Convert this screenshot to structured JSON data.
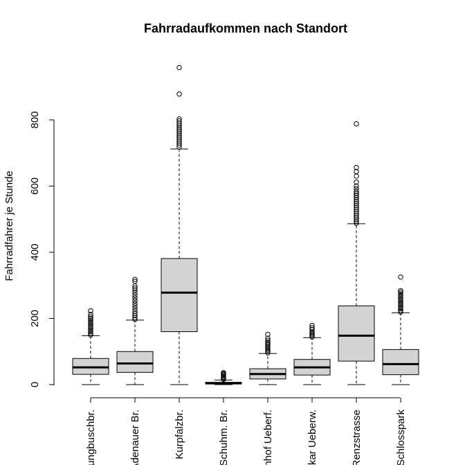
{
  "chart_data": {
    "type": "boxplot",
    "title": "Fahrradaufkommen nach Standort",
    "xlabel": "",
    "ylabel": "Fahrradfahrer je Stunde",
    "ylim": [
      0,
      960
    ],
    "yticks": [
      0,
      200,
      400,
      600,
      800
    ],
    "grid": false,
    "box_color": "#d3d3d3",
    "categories": [
      "Jungbuschbr.",
      "Adenauer Br.",
      "Kurpfalzbr.",
      "Schuhm. Br.",
      "Bahnhof Ueberf.",
      "Neckar Ueberw.",
      "Renzstrasse",
      "Schlosspark"
    ],
    "series": [
      {
        "q1": 31,
        "median": 52,
        "q3": 79,
        "whisker_low": 0,
        "whisker_high": 148,
        "outliers": [
          150,
          155,
          160,
          165,
          170,
          175,
          180,
          185,
          190,
          195,
          200,
          205,
          212,
          223
        ]
      },
      {
        "q1": 37,
        "median": 64,
        "q3": 100,
        "whisker_low": 0,
        "whisker_high": 195,
        "outliers": [
          197,
          202,
          208,
          215,
          222,
          230,
          238,
          246,
          254,
          262,
          270,
          278,
          286,
          292,
          298,
          312,
          318
        ]
      },
      {
        "q1": 160,
        "median": 278,
        "q3": 381,
        "whisker_low": 0,
        "whisker_high": 712,
        "outliers": [
          718,
          724,
          730,
          736,
          742,
          748,
          754,
          760,
          766,
          772,
          778,
          784,
          790,
          797,
          803,
          878,
          958
        ]
      },
      {
        "q1": 2,
        "median": 4,
        "q3": 7,
        "whisker_low": 0,
        "whisker_high": 14,
        "outliers": [
          16,
          19,
          22,
          25,
          28,
          31,
          34,
          36
        ]
      },
      {
        "q1": 17,
        "median": 32,
        "q3": 48,
        "whisker_low": 0,
        "whisker_high": 94,
        "outliers": [
          96,
          100,
          104,
          108,
          112,
          116,
          120,
          124,
          128,
          134,
          140,
          152
        ]
      },
      {
        "q1": 29,
        "median": 52,
        "q3": 76,
        "whisker_low": 0,
        "whisker_high": 142,
        "outliers": [
          144,
          148,
          152,
          156,
          160,
          166,
          172,
          179
        ]
      },
      {
        "q1": 71,
        "median": 148,
        "q3": 238,
        "whisker_low": 0,
        "whisker_high": 486,
        "outliers": [
          488,
          494,
          500,
          506,
          512,
          518,
          524,
          530,
          536,
          542,
          548,
          554,
          560,
          566,
          572,
          578,
          584,
          592,
          600,
          612,
          630,
          644,
          656,
          788
        ]
      },
      {
        "q1": 30,
        "median": 62,
        "q3": 106,
        "whisker_low": 0,
        "whisker_high": 217,
        "outliers": [
          219,
          224,
          229,
          234,
          239,
          244,
          249,
          254,
          259,
          264,
          269,
          274,
          279,
          284,
          325
        ]
      }
    ]
  }
}
